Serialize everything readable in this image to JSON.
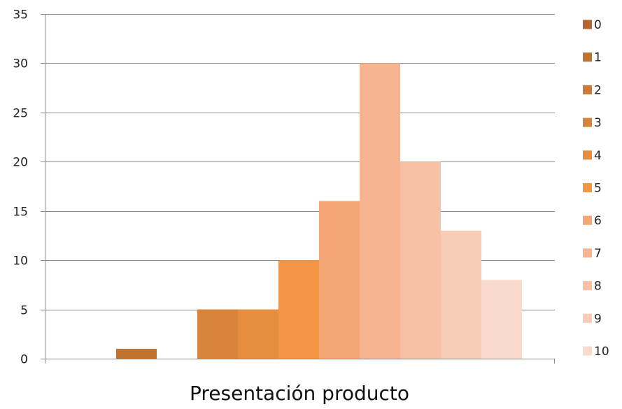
{
  "chart_data": {
    "type": "bar",
    "xlabel": "Presentación producto",
    "ylabel": "",
    "ylim": [
      0,
      35
    ],
    "yticks": [
      0,
      5,
      10,
      15,
      20,
      25,
      30,
      35
    ],
    "grid": true,
    "legend_position": "right",
    "series": [
      {
        "name": "0",
        "value": 0,
        "color": "#b5652d"
      },
      {
        "name": "1",
        "value": 1,
        "color": "#c0722f"
      },
      {
        "name": "2",
        "value": 0,
        "color": "#cc7a35"
      },
      {
        "name": "3",
        "value": 5,
        "color": "#d9843b"
      },
      {
        "name": "4",
        "value": 5,
        "color": "#e78d3f"
      },
      {
        "name": "5",
        "value": 10,
        "color": "#f39643"
      },
      {
        "name": "6",
        "value": 16,
        "color": "#f4a773"
      },
      {
        "name": "7",
        "value": 30,
        "color": "#f7b490"
      },
      {
        "name": "8",
        "value": 20,
        "color": "#f8c0a4"
      },
      {
        "name": "9",
        "value": 13,
        "color": "#f9ccb7"
      },
      {
        "name": "10",
        "value": 8,
        "color": "#fadacb"
      }
    ]
  }
}
